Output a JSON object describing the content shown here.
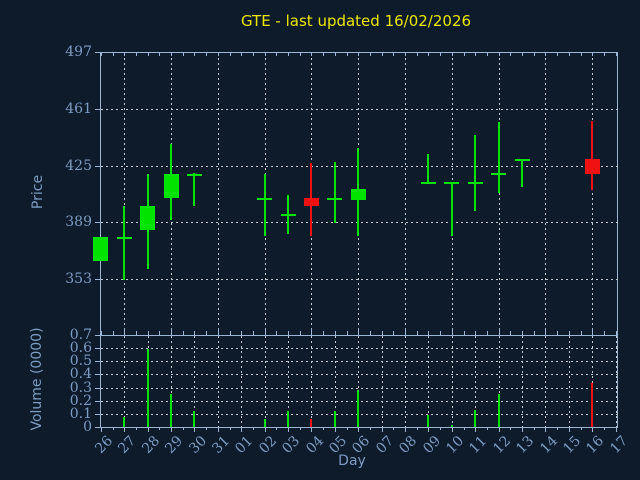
{
  "title": "GTE - last updated 16/02/2026",
  "colors": {
    "background": "#0d1b2b",
    "axis": "#9cb6d6",
    "tick_text": "#7d9cc2",
    "title_text": "#ece800",
    "grid": "#c3c9cf",
    "up": "#00e400",
    "down": "#f01212"
  },
  "chart_data": {
    "type": "candlestick_with_volume",
    "title": "GTE - last updated 16/02/2026",
    "x_axis_label": "Day",
    "price_axis_label": "Price",
    "volume_axis_label": "Volume (0000)",
    "x_labels": [
      "26",
      "27",
      "28",
      "29",
      "30",
      "31",
      "01",
      "02",
      "03",
      "04",
      "05",
      "06",
      "07",
      "08",
      "09",
      "10",
      "11",
      "12",
      "13",
      "14",
      "15",
      "16",
      "17"
    ],
    "price_ticks": [
      353,
      389,
      425,
      461,
      497
    ],
    "price_ylim": [
      317.5,
      497
    ],
    "volume_ticks": [
      0,
      0.1,
      0.2,
      0.3,
      0.4,
      0.5,
      0.6,
      0.7
    ],
    "volume_ylim": [
      0,
      0.7
    ],
    "grid": {
      "price_vertical_days": [
        "27",
        "29",
        "31",
        "02",
        "04",
        "06",
        "08",
        "10",
        "12",
        "14",
        "16"
      ],
      "volume_vertical_days": "all",
      "style": "dotted"
    },
    "legend": "none",
    "candles": [
      {
        "date": "26",
        "open": 365,
        "high": 380,
        "low": 365,
        "close": 380,
        "volume": 0
      },
      {
        "date": "27",
        "open": 380,
        "high": 400,
        "low": 353,
        "close": 380,
        "volume": 0.08
      },
      {
        "date": "28",
        "open": 385,
        "high": 420,
        "low": 360,
        "close": 400,
        "volume": 0.6
      },
      {
        "date": "29",
        "open": 405,
        "high": 439,
        "low": 391,
        "close": 420,
        "volume": 0.26
      },
      {
        "date": "30",
        "open": 420,
        "high": 421,
        "low": 400,
        "close": 420,
        "volume": 0.13
      },
      {
        "date": "02",
        "open": 405,
        "high": 420,
        "low": 381,
        "close": 405,
        "volume": 0.07
      },
      {
        "date": "03",
        "open": 395,
        "high": 407,
        "low": 382,
        "close": 395,
        "volume": 0.13
      },
      {
        "date": "04",
        "open": 405,
        "high": 427,
        "low": 381,
        "close": 400,
        "volume": 0.07
      },
      {
        "date": "05",
        "open": 405,
        "high": 428,
        "low": 389,
        "close": 405,
        "volume": 0.13
      },
      {
        "date": "06",
        "open": 404,
        "high": 437,
        "low": 381,
        "close": 411,
        "volume": 0.29
      },
      {
        "date": "09",
        "open": 415,
        "high": 433,
        "low": 415,
        "close": 415,
        "volume": 0.1
      },
      {
        "date": "10",
        "open": 415,
        "high": 415,
        "low": 381,
        "close": 415,
        "volume": 0.02
      },
      {
        "date": "11",
        "open": 415,
        "high": 445,
        "low": 397,
        "close": 415,
        "volume": 0.14
      },
      {
        "date": "12",
        "open": 421,
        "high": 453,
        "low": 408,
        "close": 421,
        "volume": 0.26
      },
      {
        "date": "13",
        "open": 430,
        "high": 430,
        "low": 412,
        "close": 430,
        "volume": 0
      },
      {
        "date": "16",
        "open": 430,
        "high": 454,
        "low": 410,
        "close": 420,
        "volume": 0.34
      }
    ]
  }
}
